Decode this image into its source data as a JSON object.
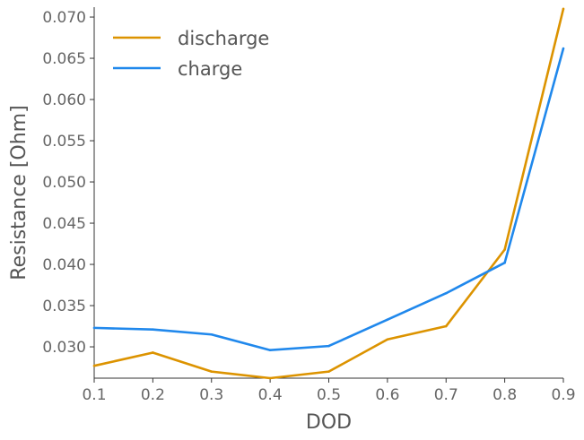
{
  "chart_data": {
    "type": "line",
    "xlabel": "DOD",
    "ylabel": "Resistance [Ohm]",
    "x": [
      0.1,
      0.2,
      0.3,
      0.4,
      0.5,
      0.6,
      0.7,
      0.8,
      0.9
    ],
    "xlim": [
      0.1,
      0.9
    ],
    "ylim": [
      0.0262,
      0.0712
    ],
    "xticks": [
      "0.1",
      "0.2",
      "0.3",
      "0.4",
      "0.5",
      "0.6",
      "0.7",
      "0.8",
      "0.9"
    ],
    "yticks": [
      "0.030",
      "0.035",
      "0.040",
      "0.045",
      "0.050",
      "0.055",
      "0.060",
      "0.065",
      "0.070"
    ],
    "grid": false,
    "legend_position": "top-left",
    "series": [
      {
        "name": "discharge",
        "color": "#dc9300",
        "values": [
          0.0277,
          0.0293,
          0.027,
          0.0262,
          0.027,
          0.0309,
          0.0325,
          0.0418,
          0.071
        ]
      },
      {
        "name": "charge",
        "color": "#2088ec",
        "values": [
          0.0323,
          0.0321,
          0.0315,
          0.0296,
          0.0301,
          0.0333,
          0.0365,
          0.0402,
          0.0662
        ]
      }
    ]
  }
}
